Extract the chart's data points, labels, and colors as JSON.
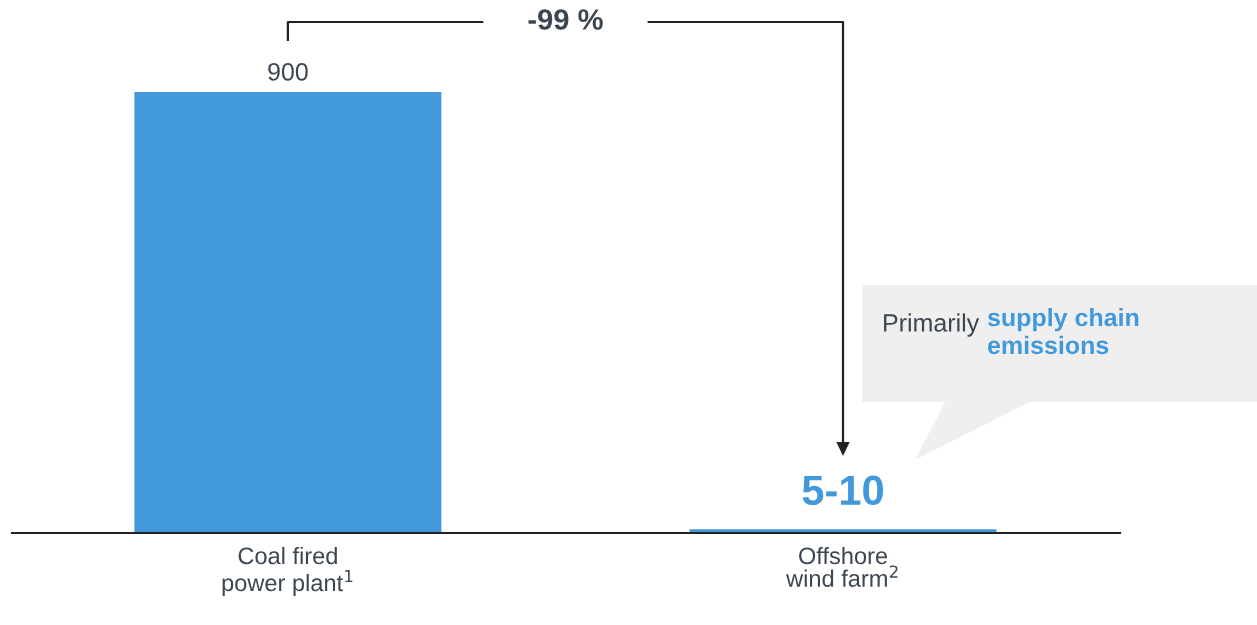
{
  "chart_data": {
    "type": "bar",
    "categories": [
      "Coal fired\npower plant$^{1}$",
      "Offshore\nwind farm$^{2}$"
    ],
    "values": [
      900,
      7.5
    ],
    "color": "#4198db",
    "value_labels": [
      "900",
      "5-10"
    ],
    "annotations": [
      "-99 %",
      "Primarily",
      "supply chain\nemissions"
    ],
    "grid": false,
    "legend": false
  }
}
